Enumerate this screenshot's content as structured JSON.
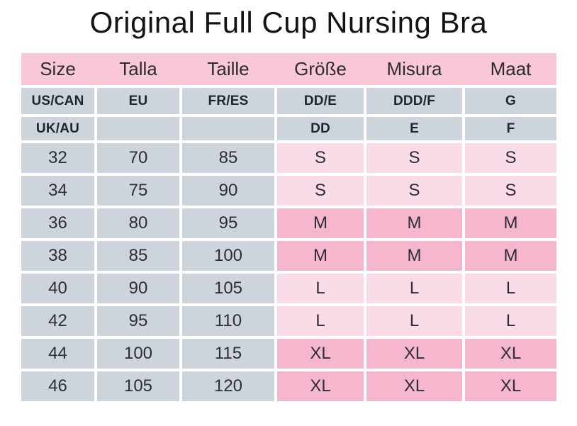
{
  "title": "Original Full Cup Nursing Bra",
  "colors": {
    "header_pink": "#f8c8d9",
    "light_pink": "#f9dce7",
    "medium_pink": "#f6b6ce",
    "cell_gray": "#ced4db",
    "text_dark": "#2d2d36"
  },
  "table": {
    "header": [
      "Size",
      "Talla",
      "Taille",
      "Größe",
      "Misura",
      "Maat"
    ],
    "subheaders": [
      {
        "cells": [
          "US/CAN",
          "EU",
          "FR/ES",
          "DD/E",
          "DDD/F",
          "G"
        ]
      },
      {
        "cells": [
          "UK/AU",
          "",
          "",
          "DD",
          "E",
          "F"
        ]
      }
    ],
    "rows": [
      {
        "cells": [
          "32",
          "70",
          "85",
          "S",
          "S",
          "S"
        ]
      },
      {
        "cells": [
          "34",
          "75",
          "90",
          "S",
          "S",
          "S"
        ]
      },
      {
        "cells": [
          "36",
          "80",
          "95",
          "M",
          "M",
          "M"
        ]
      },
      {
        "cells": [
          "38",
          "85",
          "100",
          "M",
          "M",
          "M"
        ]
      },
      {
        "cells": [
          "40",
          "90",
          "105",
          "L",
          "L",
          "L"
        ]
      },
      {
        "cells": [
          "42",
          "95",
          "110",
          "L",
          "L",
          "L"
        ]
      },
      {
        "cells": [
          "44",
          "100",
          "115",
          "XL",
          "XL",
          "XL"
        ]
      },
      {
        "cells": [
          "46",
          "105",
          "120",
          "XL",
          "XL",
          "XL"
        ]
      }
    ]
  },
  "chart_data": {
    "type": "table",
    "title": "Original Full Cup Nursing Bra",
    "columns": [
      "Size",
      "Talla",
      "Taille",
      "Größe",
      "Misura",
      "Maat"
    ],
    "region_rows": [
      [
        "US/CAN",
        "EU",
        "FR/ES",
        "DD/E",
        "DDD/F",
        "G"
      ],
      [
        "UK/AU",
        "",
        "",
        "DD",
        "E",
        "F"
      ]
    ],
    "rows": [
      [
        "32",
        "70",
        "85",
        "S",
        "S",
        "S"
      ],
      [
        "34",
        "75",
        "90",
        "S",
        "S",
        "S"
      ],
      [
        "36",
        "80",
        "95",
        "M",
        "M",
        "M"
      ],
      [
        "38",
        "85",
        "100",
        "M",
        "M",
        "M"
      ],
      [
        "40",
        "90",
        "105",
        "L",
        "L",
        "L"
      ],
      [
        "42",
        "95",
        "110",
        "L",
        "L",
        "L"
      ],
      [
        "44",
        "100",
        "115",
        "XL",
        "XL",
        "XL"
      ],
      [
        "46",
        "105",
        "120",
        "XL",
        "XL",
        "XL"
      ]
    ],
    "size_tone_groups": {
      "light_pink": [
        "S",
        "L"
      ],
      "medium_pink": [
        "M",
        "XL"
      ]
    },
    "grid": "white gaps between cells",
    "legend_position": "none"
  }
}
